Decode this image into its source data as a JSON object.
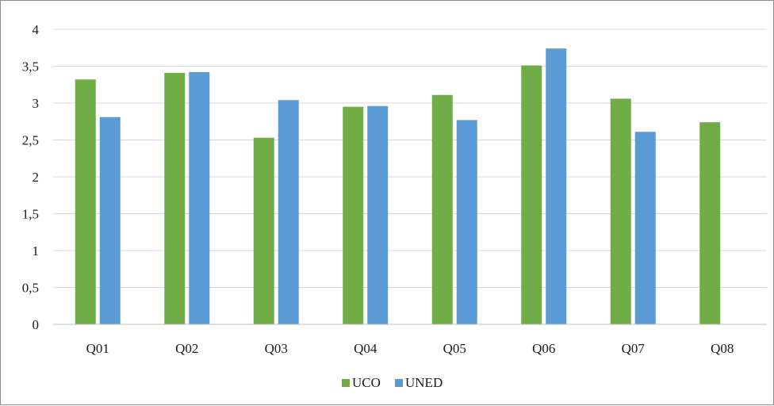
{
  "chart_data": {
    "type": "bar",
    "title": "",
    "xlabel": "",
    "ylabel": "",
    "categories": [
      "Q01",
      "Q02",
      "Q03",
      "Q04",
      "Q05",
      "Q06",
      "Q07",
      "Q08"
    ],
    "series": [
      {
        "name": "UCO",
        "color": "#70ad47",
        "values": [
          3.32,
          3.41,
          2.53,
          2.95,
          3.11,
          3.51,
          3.06,
          2.74
        ]
      },
      {
        "name": "UNED",
        "color": "#5b9bd5",
        "values": [
          2.81,
          3.42,
          3.04,
          2.96,
          2.77,
          3.74,
          2.61,
          null
        ]
      }
    ],
    "ylim": [
      0,
      4
    ],
    "yticks": [
      0,
      0.5,
      1,
      1.5,
      2,
      2.5,
      3,
      3.5,
      4
    ],
    "ytick_labels": [
      "0",
      "0,5",
      "1",
      "1,5",
      "2",
      "2,5",
      "3",
      "3,5",
      "4"
    ],
    "grid": true,
    "legend_position": "bottom"
  }
}
